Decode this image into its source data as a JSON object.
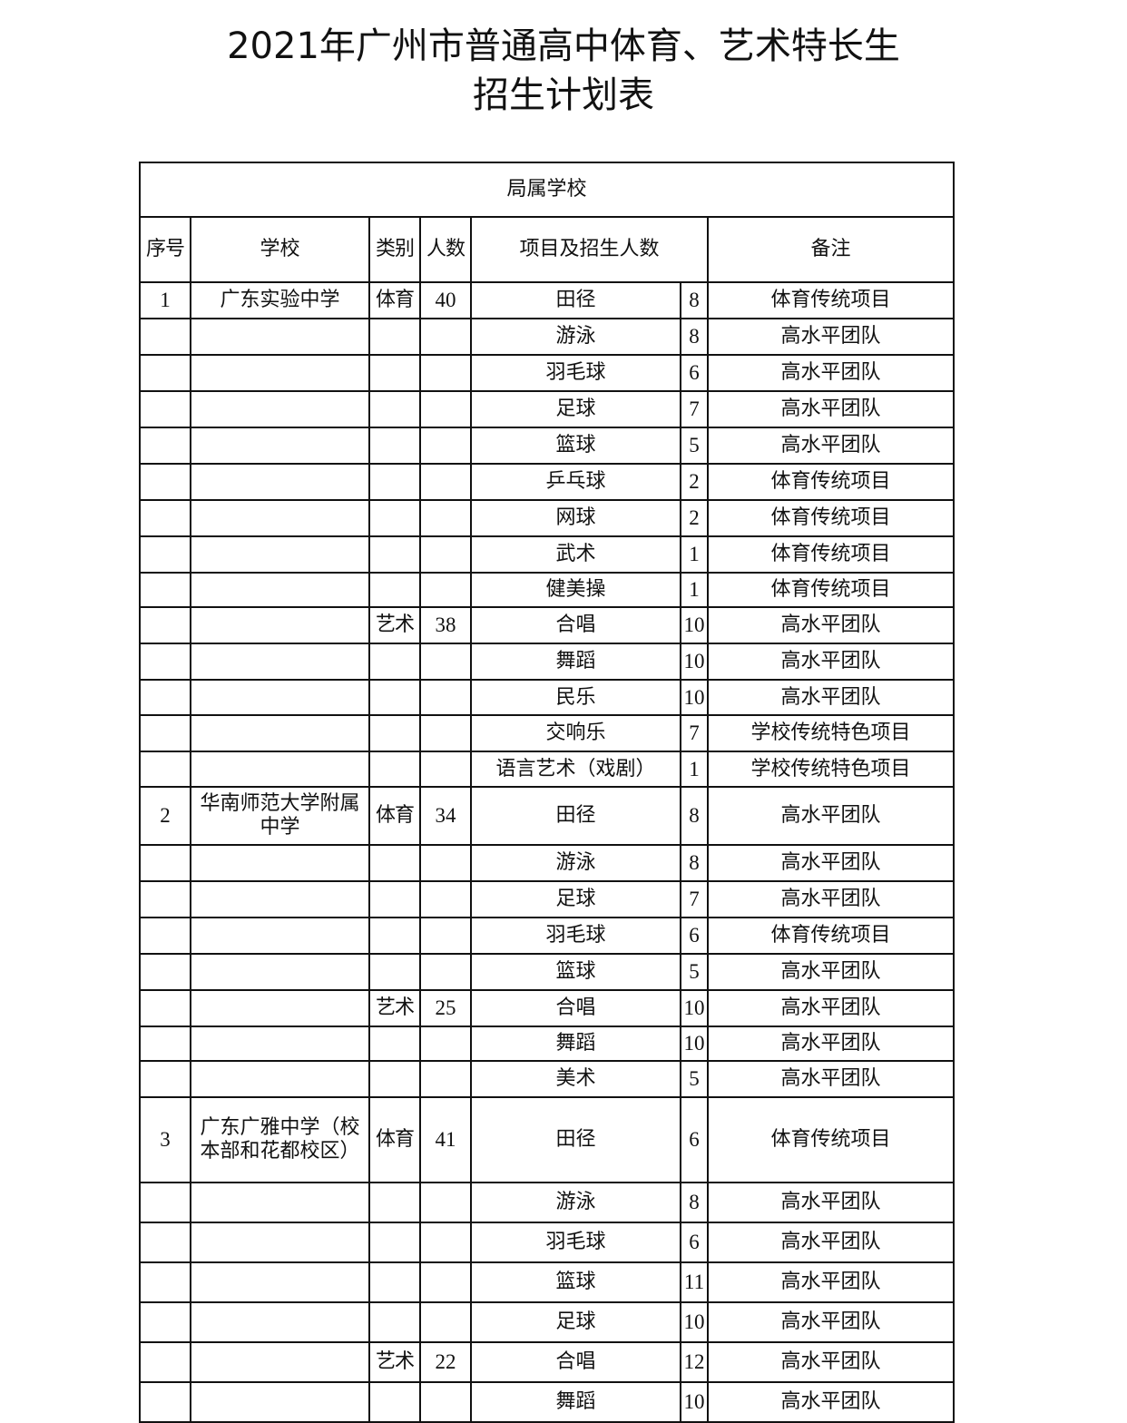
{
  "title": {
    "line1": "2021年广州市普通高中体育、艺术特长生",
    "line2": "招生计划表"
  },
  "section": "局属学校",
  "columns": [
    "序号",
    "学校",
    "类别",
    "人数",
    "项目及招生人数",
    "备注"
  ],
  "rows": [
    [
      "1",
      "广东实验中学",
      "体育",
      "40",
      "田径",
      "8",
      "体育传统项目"
    ],
    [
      "",
      "",
      "",
      "",
      "游泳",
      "8",
      "高水平团队"
    ],
    [
      "",
      "",
      "",
      "",
      "羽毛球",
      "6",
      "高水平团队"
    ],
    [
      "",
      "",
      "",
      "",
      "足球",
      "7",
      "高水平团队"
    ],
    [
      "",
      "",
      "",
      "",
      "篮球",
      "5",
      "高水平团队"
    ],
    [
      "",
      "",
      "",
      "",
      "乒乓球",
      "2",
      "体育传统项目"
    ],
    [
      "",
      "",
      "",
      "",
      "网球",
      "2",
      "体育传统项目"
    ],
    [
      "",
      "",
      "",
      "",
      "武术",
      "1",
      "体育传统项目"
    ],
    [
      "",
      "",
      "",
      "",
      "健美操",
      "1",
      "体育传统项目"
    ],
    [
      "",
      "",
      "艺术",
      "38",
      "合唱",
      "10",
      "高水平团队"
    ],
    [
      "",
      "",
      "",
      "",
      "舞蹈",
      "10",
      "高水平团队"
    ],
    [
      "",
      "",
      "",
      "",
      "民乐",
      "10",
      "高水平团队"
    ],
    [
      "",
      "",
      "",
      "",
      "交响乐",
      "7",
      "学校传统特色项目"
    ],
    [
      "",
      "",
      "",
      "",
      "语言艺术（戏剧）",
      "1",
      "学校传统特色项目"
    ],
    [
      "2",
      "华南师范大学附属中学",
      "体育",
      "34",
      "田径",
      "8",
      "高水平团队"
    ],
    [
      "",
      "",
      "",
      "",
      "游泳",
      "8",
      "高水平团队"
    ],
    [
      "",
      "",
      "",
      "",
      "足球",
      "7",
      "高水平团队"
    ],
    [
      "",
      "",
      "",
      "",
      "羽毛球",
      "6",
      "体育传统项目"
    ],
    [
      "",
      "",
      "",
      "",
      "篮球",
      "5",
      "高水平团队"
    ],
    [
      "",
      "",
      "艺术",
      "25",
      "合唱",
      "10",
      "高水平团队"
    ],
    [
      "",
      "",
      "",
      "",
      "舞蹈",
      "10",
      "高水平团队"
    ],
    [
      "",
      "",
      "",
      "",
      "美术",
      "5",
      "高水平团队"
    ],
    [
      "3",
      "广东广雅中学（校本部和花都校区）",
      "体育",
      "41",
      "田径",
      "6",
      "体育传统项目"
    ],
    [
      "",
      "",
      "",
      "",
      "游泳",
      "8",
      "高水平团队"
    ],
    [
      "",
      "",
      "",
      "",
      "羽毛球",
      "6",
      "高水平团队"
    ],
    [
      "",
      "",
      "",
      "",
      "篮球",
      "11",
      "高水平团队"
    ],
    [
      "",
      "",
      "",
      "",
      "足球",
      "10",
      "高水平团队"
    ],
    [
      "",
      "",
      "艺术",
      "22",
      "合唱",
      "12",
      "高水平团队"
    ],
    [
      "",
      "",
      "",
      "",
      "舞蹈",
      "10",
      "高水平团队"
    ]
  ]
}
